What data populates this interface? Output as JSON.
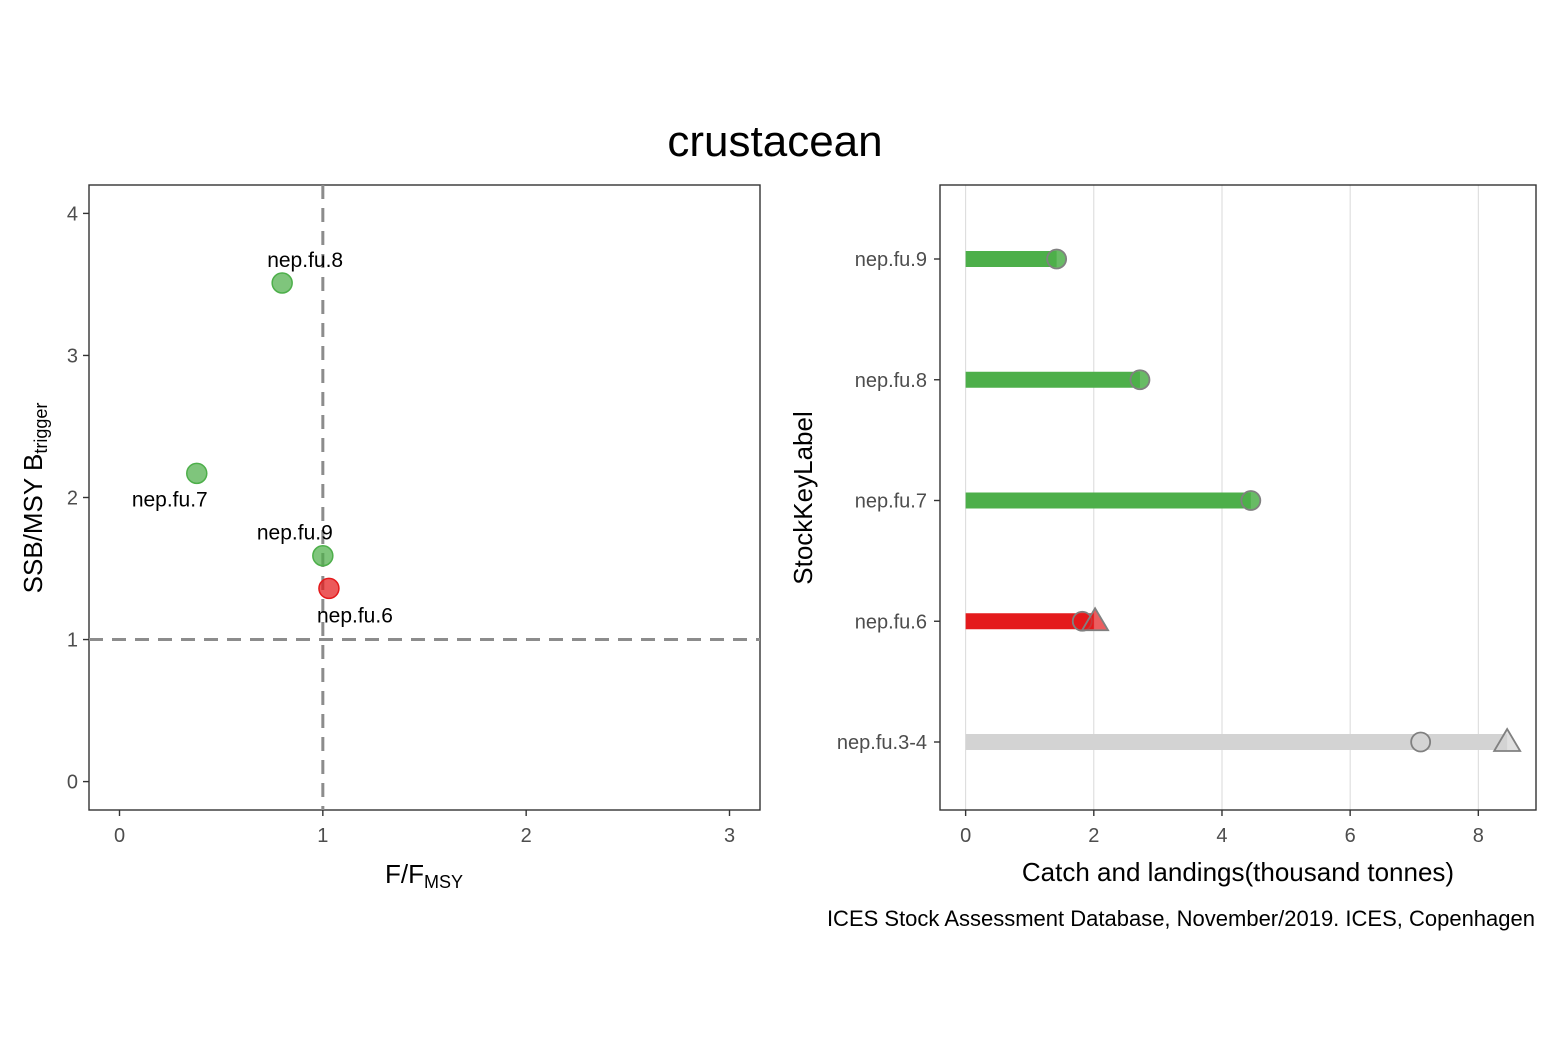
{
  "title": "crustacean",
  "caption": "ICES Stock Assessment Database, November/2019. ICES, Copenhagen",
  "chart_data": [
    {
      "type": "scatter",
      "xlabel_main": "F/F",
      "xlabel_sub": "MSY",
      "ylabel_main": "SSB/MSY B",
      "ylabel_sub": "trigger",
      "xlim": [
        -0.15,
        3.15
      ],
      "ylim": [
        -0.2,
        4.2
      ],
      "xticks": [
        "0",
        "1",
        "2",
        "3"
      ],
      "yticks": [
        "0",
        "1",
        "2",
        "3",
        "4"
      ],
      "ref_lines": {
        "x": 1,
        "y": 1
      },
      "points": [
        {
          "label": "nep.fu.8",
          "x": 0.8,
          "y": 3.51,
          "color": "#4daf4a"
        },
        {
          "label": "nep.fu.7",
          "x": 0.38,
          "y": 2.17,
          "color": "#4daf4a"
        },
        {
          "label": "nep.fu.9",
          "x": 1.0,
          "y": 1.59,
          "color": "#4daf4a"
        },
        {
          "label": "nep.fu.6",
          "x": 1.03,
          "y": 1.36,
          "color": "#e41a1c"
        }
      ]
    },
    {
      "type": "bar",
      "orientation": "horizontal",
      "xlabel": "Catch and landings(thousand tonnes)",
      "ylabel": "StockKeyLabel",
      "xlim": [
        -0.4,
        8.9
      ],
      "xticks": [
        "0",
        "2",
        "4",
        "6",
        "8"
      ],
      "categories": [
        "nep.fu.9",
        "nep.fu.8",
        "nep.fu.7",
        "nep.fu.6",
        "nep.fu.3-4"
      ],
      "bars": [
        {
          "category": "nep.fu.9",
          "value": 1.42,
          "color": "#4daf4a",
          "circle": 1.42,
          "triangle": null
        },
        {
          "category": "nep.fu.8",
          "value": 2.72,
          "color": "#4daf4a",
          "circle": 2.72,
          "triangle": null
        },
        {
          "category": "nep.fu.7",
          "value": 4.45,
          "color": "#4daf4a",
          "circle": 4.45,
          "triangle": null
        },
        {
          "category": "nep.fu.6",
          "value": 2.0,
          "color": "#e41a1c",
          "circle": 1.82,
          "triangle": 2.02
        },
        {
          "category": "nep.fu.3-4",
          "value": 8.45,
          "color": "#d3d3d3",
          "circle": 7.1,
          "triangle": 8.45
        }
      ]
    }
  ]
}
